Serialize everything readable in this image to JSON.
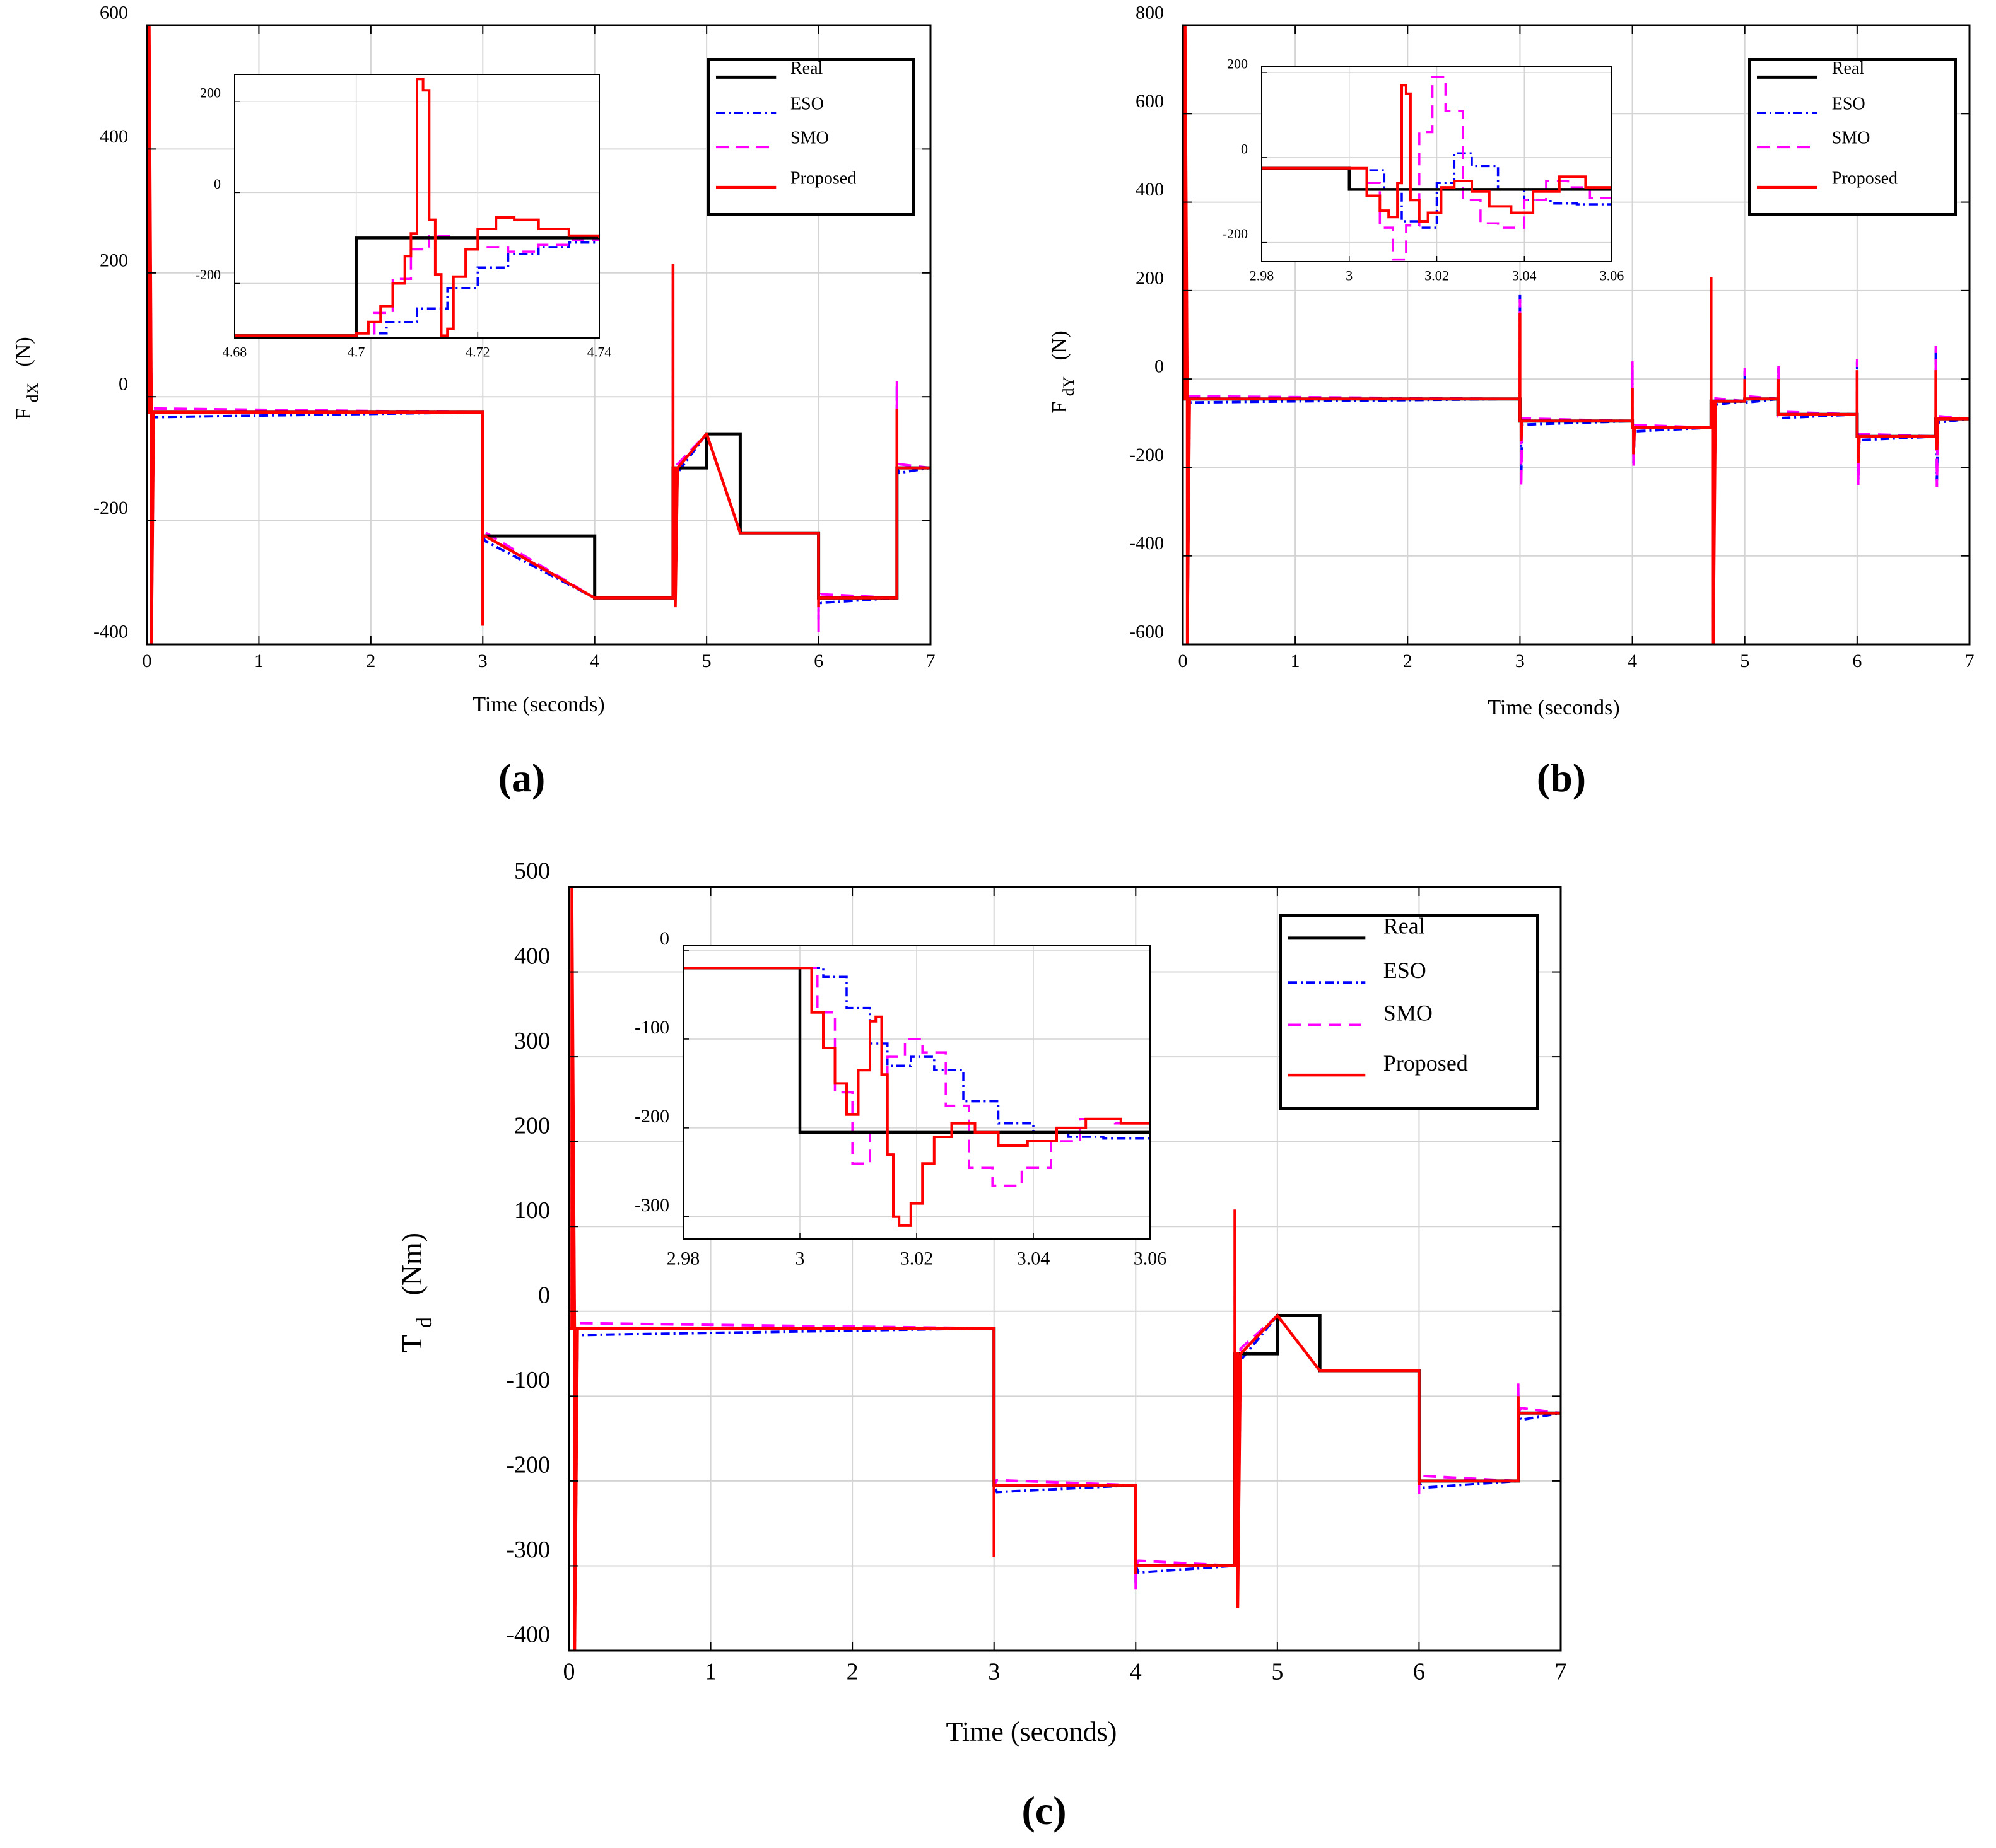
{
  "colors": {
    "real": "#000000",
    "eso": "#0000ff",
    "smo": "#ff00ff",
    "proposed": "#ff0000",
    "grid": "#d4d4d4",
    "axes": "#000000"
  },
  "legend_labels": [
    "Real",
    "ESO",
    "SMO",
    "Proposed"
  ],
  "chart_data": [
    {
      "type": "line",
      "panel": "(a)",
      "title": "",
      "xlabel": "Time (seconds)",
      "ylabel": "F_dX (N)",
      "ylabel_main": "F",
      "ylabel_sub": "dX",
      "ylabel_unit": "(N)",
      "xlim": [
        0,
        7
      ],
      "ylim": [
        -400,
        600
      ],
      "xticks": [
        0,
        1,
        2,
        3,
        4,
        5,
        6,
        7
      ],
      "yticks": [
        -400,
        -200,
        0,
        200,
        400,
        600
      ],
      "grid": true,
      "legend": "top-right",
      "steps": [
        [
          0,
          -25
        ],
        [
          3,
          -225
        ],
        [
          4,
          -325
        ],
        [
          4.7,
          -115
        ],
        [
          5,
          -60
        ],
        [
          5.3,
          -220
        ],
        [
          6,
          -325
        ],
        [
          6.7,
          -115
        ],
        [
          7,
          -115
        ]
      ],
      "spikes": [
        {
          "t": 0.02,
          "real": 0,
          "eso": 580,
          "smo": 560,
          "proposed": 600
        },
        {
          "t": 0.04,
          "real": 0,
          "eso": -400,
          "smo": -380,
          "proposed": -400
        },
        {
          "t": 3.0,
          "real": 0,
          "eso": -220,
          "smo": -230,
          "proposed": -370
        },
        {
          "t": 4.7,
          "real": 0,
          "eso": 200,
          "smo": 210,
          "proposed": 215
        },
        {
          "t": 4.72,
          "real": 0,
          "eso": -340,
          "smo": -330,
          "proposed": -340
        },
        {
          "t": 6.0,
          "real": 0,
          "eso": -360,
          "smo": -380,
          "proposed": -340
        },
        {
          "t": 6.7,
          "real": 0,
          "eso": 20,
          "smo": 25,
          "proposed": -20
        }
      ],
      "inset": {
        "xlim": [
          4.68,
          4.74
        ],
        "ylim": [
          -320,
          260
        ],
        "xticks": [
          4.68,
          4.7,
          4.72,
          4.74
        ],
        "yticks": [
          -200,
          0,
          200
        ],
        "series": [
          {
            "name": "Real",
            "x": [
              4.68,
              4.7,
              4.7,
              4.74
            ],
            "y": [
              -315,
              -315,
              -100,
              -100
            ]
          },
          {
            "name": "ESO",
            "x": [
              4.68,
              4.7,
              4.705,
              4.71,
              4.715,
              4.72,
              4.725,
              4.73,
              4.735,
              4.74
            ],
            "y": [
              -315,
              -310,
              -285,
              -255,
              -210,
              -165,
              -135,
              -120,
              -110,
              -110
            ]
          },
          {
            "name": "SMO",
            "x": [
              4.68,
              4.7,
              4.703,
              4.706,
              4.709,
              4.712,
              4.716,
              4.72,
              4.725,
              4.73,
              4.735,
              4.74
            ],
            "y": [
              -315,
              -310,
              -265,
              -190,
              -125,
              -95,
              -100,
              -120,
              -130,
              -115,
              -105,
              -100
            ]
          },
          {
            "name": "Proposed",
            "x": [
              4.68,
              4.7,
              4.702,
              4.704,
              4.706,
              4.708,
              4.709,
              4.71,
              4.711,
              4.712,
              4.713,
              4.714,
              4.715,
              4.716,
              4.718,
              4.72,
              4.723,
              4.726,
              4.73,
              4.735,
              4.74
            ],
            "y": [
              -315,
              -310,
              -285,
              -250,
              -200,
              -140,
              -90,
              250,
              225,
              -60,
              -180,
              -315,
              -300,
              -185,
              -125,
              -80,
              -55,
              -60,
              -80,
              -95,
              -100
            ]
          }
        ]
      }
    },
    {
      "type": "line",
      "panel": "(b)",
      "title": "",
      "xlabel": "Time (seconds)",
      "ylabel": "F_dY (N)",
      "ylabel_main": "F",
      "ylabel_sub": "dY",
      "ylabel_unit": "(N)",
      "xlim": [
        0,
        7
      ],
      "ylim": [
        -600,
        800
      ],
      "xticks": [
        0,
        1,
        2,
        3,
        4,
        5,
        6,
        7
      ],
      "yticks": [
        -600,
        -400,
        -200,
        0,
        200,
        400,
        600,
        800
      ],
      "grid": true,
      "legend": "top-right",
      "steps": [
        [
          0,
          -45
        ],
        [
          3,
          -95
        ],
        [
          4,
          -110
        ],
        [
          4.7,
          -50
        ],
        [
          5,
          -45
        ],
        [
          5.3,
          -80
        ],
        [
          6,
          -130
        ],
        [
          6.7,
          -90
        ],
        [
          7,
          -90
        ]
      ],
      "spikes": [
        {
          "t": 0.02,
          "real": 0,
          "eso": 780,
          "smo": 760,
          "proposed": 800
        },
        {
          "t": 0.04,
          "real": 0,
          "eso": -600,
          "smo": -560,
          "proposed": -600
        },
        {
          "t": 3.0,
          "real": 0,
          "eso": 190,
          "smo": 180,
          "proposed": 150
        },
        {
          "t": 3.01,
          "real": 0,
          "eso": -230,
          "smo": -245,
          "proposed": -140
        },
        {
          "t": 4.0,
          "real": 0,
          "eso": 30,
          "smo": 40,
          "proposed": -20
        },
        {
          "t": 4.01,
          "real": 0,
          "eso": -190,
          "smo": -200,
          "proposed": -170
        },
        {
          "t": 4.7,
          "real": 0,
          "eso": 220,
          "smo": 210,
          "proposed": 230
        },
        {
          "t": 4.72,
          "real": 0,
          "eso": -570,
          "smo": -560,
          "proposed": -600
        },
        {
          "t": 5.0,
          "real": 0,
          "eso": 20,
          "smo": 25,
          "proposed": 0
        },
        {
          "t": 5.3,
          "real": 0,
          "eso": 25,
          "smo": 30,
          "proposed": 0
        },
        {
          "t": 6.0,
          "real": 0,
          "eso": 40,
          "smo": 45,
          "proposed": 20
        },
        {
          "t": 6.01,
          "real": 0,
          "eso": -230,
          "smo": -240,
          "proposed": -190
        },
        {
          "t": 6.7,
          "real": 0,
          "eso": 70,
          "smo": 75,
          "proposed": 20
        },
        {
          "t": 6.71,
          "real": 0,
          "eso": -230,
          "smo": -245,
          "proposed": -160
        }
      ],
      "inset": {
        "xlim": [
          2.98,
          3.06
        ],
        "ylim": [
          -245,
          215
        ],
        "xticks": [
          2.98,
          3,
          3.02,
          3.04,
          3.06
        ],
        "yticks": [
          -200,
          0,
          200
        ],
        "series": [
          {
            "name": "Real",
            "x": [
              2.98,
              3.0,
              3.0,
              3.06
            ],
            "y": [
              -25,
              -25,
              -75,
              -75
            ]
          },
          {
            "name": "ESO",
            "x": [
              2.98,
              3.0,
              3.004,
              3.008,
              3.012,
              3.016,
              3.02,
              3.024,
              3.028,
              3.034,
              3.04,
              3.046,
              3.052,
              3.06
            ],
            "y": [
              -25,
              -25,
              -30,
              -75,
              -150,
              -165,
              -60,
              10,
              -20,
              -75,
              -100,
              -108,
              -110,
              -110
            ]
          },
          {
            "name": "SMO",
            "x": [
              2.98,
              3.0,
              3.004,
              3.007,
              3.01,
              3.013,
              3.016,
              3.019,
              3.022,
              3.026,
              3.03,
              3.034,
              3.04,
              3.045,
              3.05,
              3.055,
              3.06
            ],
            "y": [
              -25,
              -25,
              -60,
              -165,
              -240,
              -160,
              60,
              190,
              110,
              -100,
              -155,
              -165,
              -100,
              -55,
              -70,
              -95,
              -100
            ]
          },
          {
            "name": "Proposed",
            "x": [
              2.98,
              3.0,
              3.004,
              3.007,
              3.009,
              3.011,
              3.012,
              3.013,
              3.014,
              3.016,
              3.018,
              3.021,
              3.024,
              3.028,
              3.032,
              3.037,
              3.042,
              3.048,
              3.054,
              3.06
            ],
            "y": [
              -25,
              -25,
              -90,
              -125,
              -140,
              -60,
              170,
              150,
              -100,
              -150,
              -130,
              -70,
              -55,
              -80,
              -115,
              -130,
              -80,
              -45,
              -70,
              -100
            ]
          }
        ]
      }
    },
    {
      "type": "line",
      "panel": "(c)",
      "title": "",
      "xlabel": "Time (seconds)",
      "ylabel": "T_d (Nm)",
      "ylabel_main": "T",
      "ylabel_sub": "d",
      "ylabel_unit": "(Nm)",
      "xlim": [
        0,
        7
      ],
      "ylim": [
        -400,
        500
      ],
      "xticks": [
        0,
        1,
        2,
        3,
        4,
        5,
        6,
        7
      ],
      "yticks": [
        -400,
        -300,
        -200,
        -100,
        0,
        100,
        200,
        300,
        400,
        500
      ],
      "grid": true,
      "legend": "top-right",
      "steps": [
        [
          0,
          -20
        ],
        [
          3,
          -205
        ],
        [
          4,
          -300
        ],
        [
          4.7,
          -50
        ],
        [
          5,
          -5
        ],
        [
          5.3,
          -70
        ],
        [
          6,
          -200
        ],
        [
          6.7,
          -120
        ],
        [
          7,
          -120
        ]
      ],
      "spikes": [
        {
          "t": 0.02,
          "real": 0,
          "eso": 480,
          "smo": 470,
          "proposed": 500
        },
        {
          "t": 0.04,
          "real": 0,
          "eso": -400,
          "smo": -380,
          "proposed": -400
        },
        {
          "t": 3.0,
          "real": 0,
          "eso": -190,
          "smo": -200,
          "proposed": -290
        },
        {
          "t": 4.0,
          "real": 0,
          "eso": -320,
          "smo": -330,
          "proposed": -310
        },
        {
          "t": 4.7,
          "real": 0,
          "eso": 110,
          "smo": 100,
          "proposed": 120
        },
        {
          "t": 4.72,
          "real": 0,
          "eso": -340,
          "smo": -330,
          "proposed": -350
        },
        {
          "t": 6.0,
          "real": 0,
          "eso": -210,
          "smo": -215,
          "proposed": -205
        },
        {
          "t": 6.7,
          "real": 0,
          "eso": -90,
          "smo": -85,
          "proposed": -100
        }
      ],
      "inset": {
        "xlim": [
          2.98,
          3.06
        ],
        "ylim": [
          -325,
          5
        ],
        "xticks": [
          2.98,
          3,
          3.02,
          3.04,
          3.06
        ],
        "yticks": [
          0,
          -100,
          -200,
          -300
        ],
        "series": [
          {
            "name": "Real",
            "x": [
              2.98,
              3.0,
              3.0,
              3.06
            ],
            "y": [
              -20,
              -20,
              -205,
              -205
            ]
          },
          {
            "name": "ESO",
            "x": [
              2.98,
              3.0,
              3.004,
              3.008,
              3.012,
              3.015,
              3.019,
              3.023,
              3.028,
              3.034,
              3.04,
              3.046,
              3.052,
              3.06
            ],
            "y": [
              -20,
              -20,
              -30,
              -65,
              -105,
              -130,
              -120,
              -135,
              -170,
              -195,
              -205,
              -210,
              -212,
              -212
            ]
          },
          {
            "name": "SMO",
            "x": [
              2.98,
              3.0,
              3.003,
              3.006,
              3.009,
              3.012,
              3.015,
              3.018,
              3.021,
              3.025,
              3.029,
              3.033,
              3.038,
              3.043,
              3.048,
              3.054,
              3.06
            ],
            "y": [
              -20,
              -20,
              -70,
              -160,
              -240,
              -205,
              -120,
              -100,
              -115,
              -175,
              -245,
              -265,
              -245,
              -215,
              -190,
              -195,
              -205
            ]
          },
          {
            "name": "Proposed",
            "x": [
              2.98,
              3.0,
              3.002,
              3.004,
              3.006,
              3.008,
              3.01,
              3.012,
              3.013,
              3.014,
              3.015,
              3.016,
              3.017,
              3.019,
              3.021,
              3.023,
              3.026,
              3.03,
              3.034,
              3.039,
              3.044,
              3.049,
              3.055,
              3.06
            ],
            "y": [
              -20,
              -20,
              -70,
              -110,
              -150,
              -185,
              -135,
              -80,
              -75,
              -140,
              -230,
              -300,
              -310,
              -285,
              -240,
              -210,
              -195,
              -205,
              -220,
              -215,
              -200,
              -190,
              -195,
              -205
            ]
          }
        ]
      }
    }
  ],
  "panel_labels": [
    "(a)",
    "(b)",
    "(c)"
  ]
}
